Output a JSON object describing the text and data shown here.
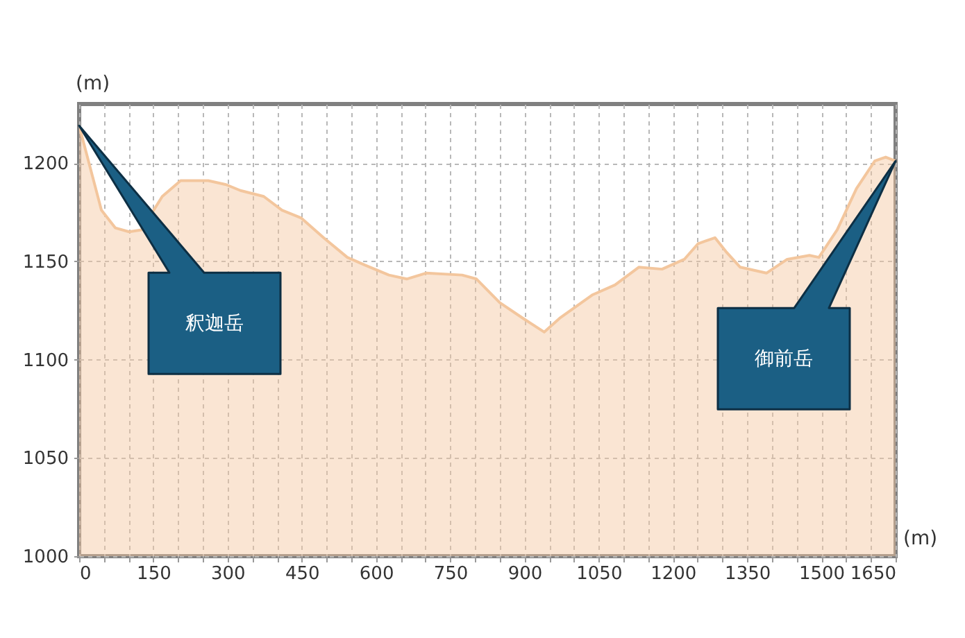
{
  "chart_data": {
    "type": "area",
    "xlabel": "(m)",
    "ylabel": "(m)",
    "x": [
      0,
      45,
      73,
      101,
      126,
      168,
      205,
      261,
      297,
      326,
      373,
      410,
      449,
      494,
      542,
      578,
      626,
      662,
      701,
      774,
      803,
      850,
      897,
      940,
      971,
      1038,
      1083,
      1131,
      1178,
      1223,
      1251,
      1285,
      1307,
      1336,
      1389,
      1431,
      1476,
      1495,
      1532,
      1571,
      1608,
      1630,
      1650
    ],
    "series": [
      {
        "color": "#f3c69d",
        "values": [
          1219,
          1176,
          1167,
          1165,
          1166,
          1183,
          1191,
          1191,
          1189,
          1186,
          1183,
          1176,
          1172,
          1162,
          1152,
          1148,
          1143,
          1141,
          1144,
          1143,
          1141,
          1129,
          1121,
          1114,
          1121,
          1133,
          1138,
          1147,
          1146,
          1151,
          1159,
          1162,
          1155,
          1147,
          1144,
          1151,
          1153,
          1152,
          1166,
          1187,
          1201,
          1203,
          1201
        ]
      }
    ],
    "xlim": [
      0,
      1650
    ],
    "ylim": [
      1000,
      1230
    ],
    "xticks": [
      0,
      {
        "value": 50,
        "label": null
      },
      {
        "value": 100,
        "label": null
      },
      150,
      {
        "value": 200,
        "label": null
      },
      {
        "value": 250,
        "label": null
      },
      300,
      {
        "value": 350,
        "label": null
      },
      {
        "value": 400,
        "label": null
      },
      450,
      {
        "value": 500,
        "label": null
      },
      {
        "value": 550,
        "label": null
      },
      600,
      {
        "value": 650,
        "label": null
      },
      {
        "value": 700,
        "label": null
      },
      750,
      {
        "value": 800,
        "label": null
      },
      {
        "value": 850,
        "label": null
      },
      900,
      {
        "value": 950,
        "label": null
      },
      {
        "value": 1000,
        "label": null
      },
      1050,
      {
        "value": 1100,
        "label": null
      },
      {
        "value": 1150,
        "label": null
      },
      1200,
      {
        "value": 1250,
        "label": null
      },
      {
        "value": 1300,
        "label": null
      },
      1350,
      {
        "value": 1400,
        "label": null
      },
      {
        "value": 1450,
        "label": null
      },
      1500,
      {
        "value": 1550,
        "label": null
      },
      {
        "value": 1600,
        "label": null
      },
      1650
    ],
    "yticks": [
      1000,
      1050,
      1100,
      1150,
      1200
    ],
    "grid": true,
    "annotations": [
      "釈迦岳",
      "御前岳"
    ]
  }
}
